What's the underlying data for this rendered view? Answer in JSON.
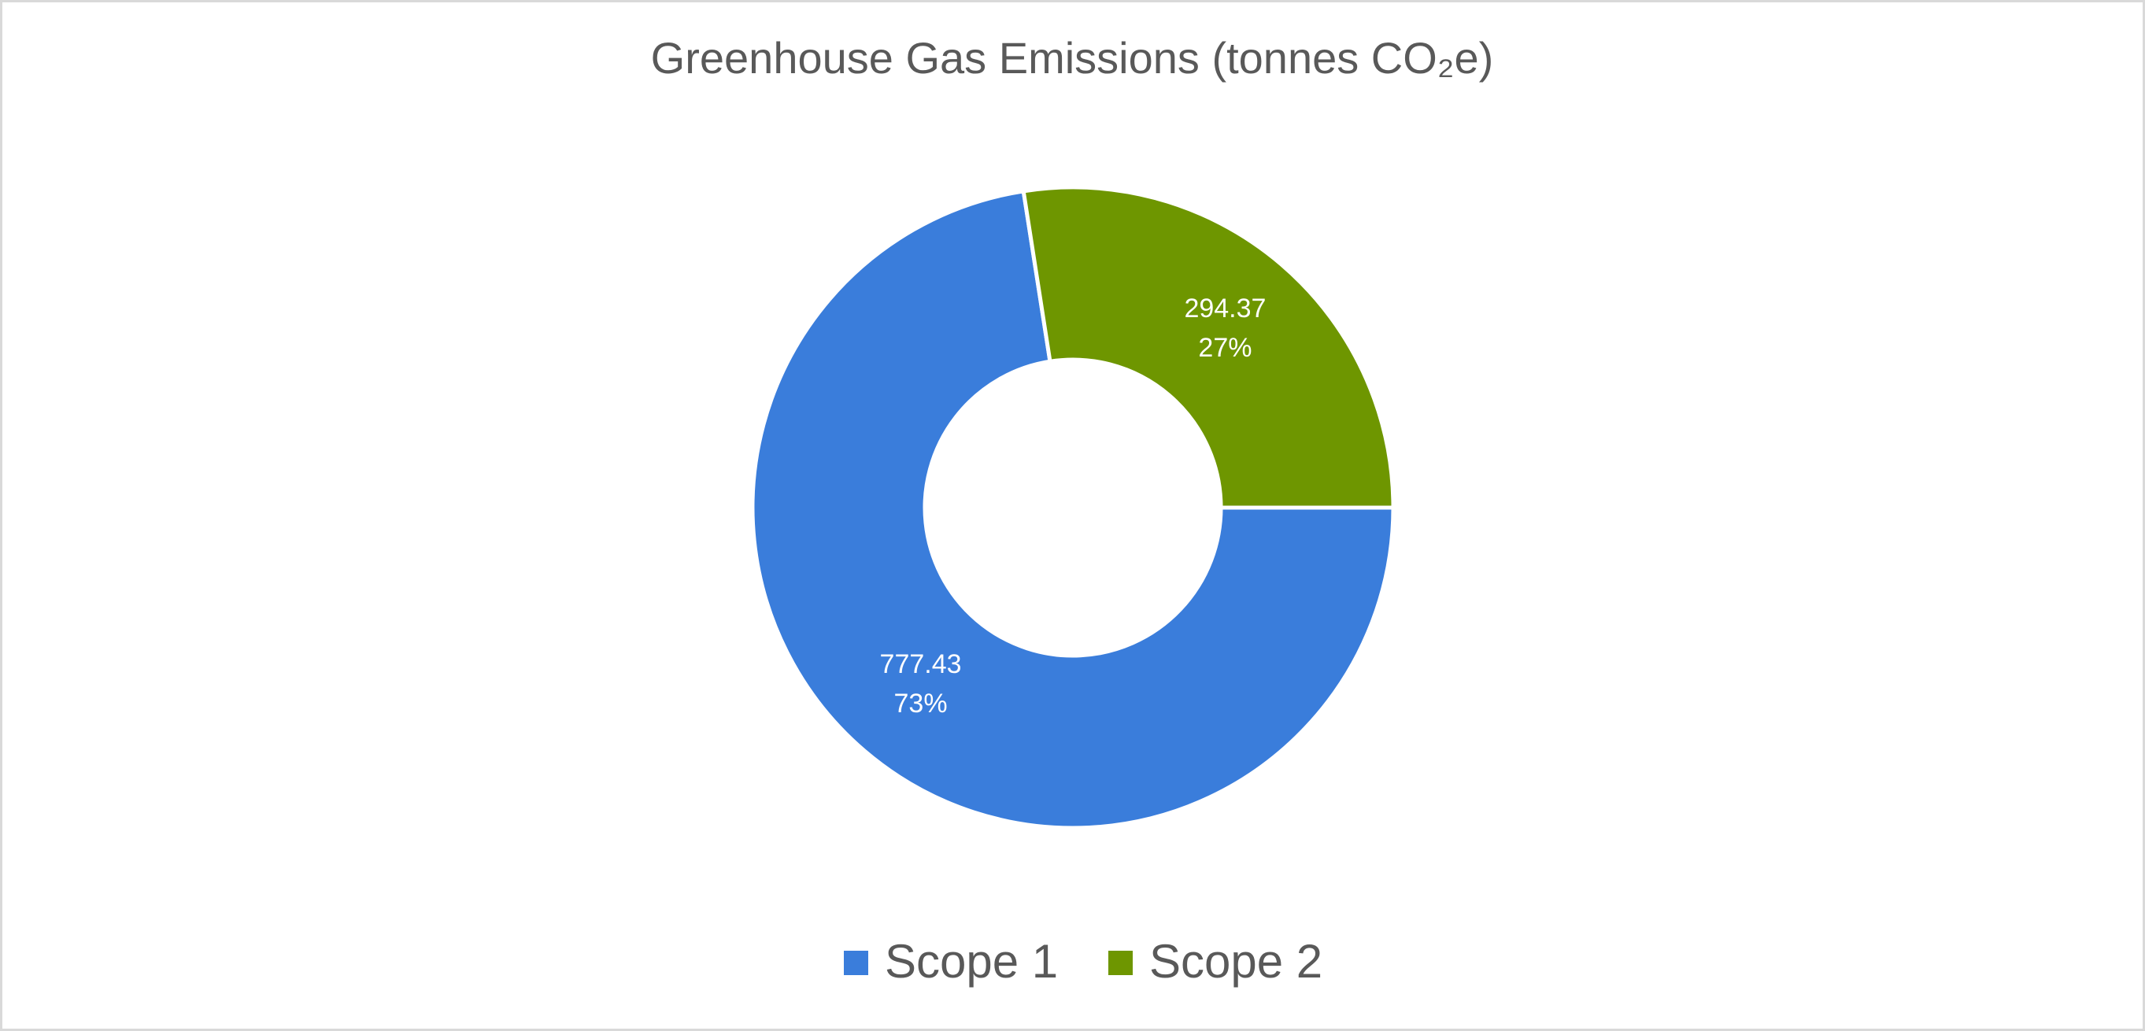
{
  "chart_data": {
    "type": "donut",
    "title": "Greenhouse Gas Emissions (tonnes CO₂e)",
    "categories": [
      "Scope 1",
      "Scope 2"
    ],
    "values": [
      777.43,
      294.37
    ],
    "percents": [
      73,
      27
    ],
    "percent_labels": [
      "73%",
      "27%"
    ],
    "colors": [
      "#3a7ddb",
      "#6e9600"
    ],
    "legend": "bottom"
  }
}
